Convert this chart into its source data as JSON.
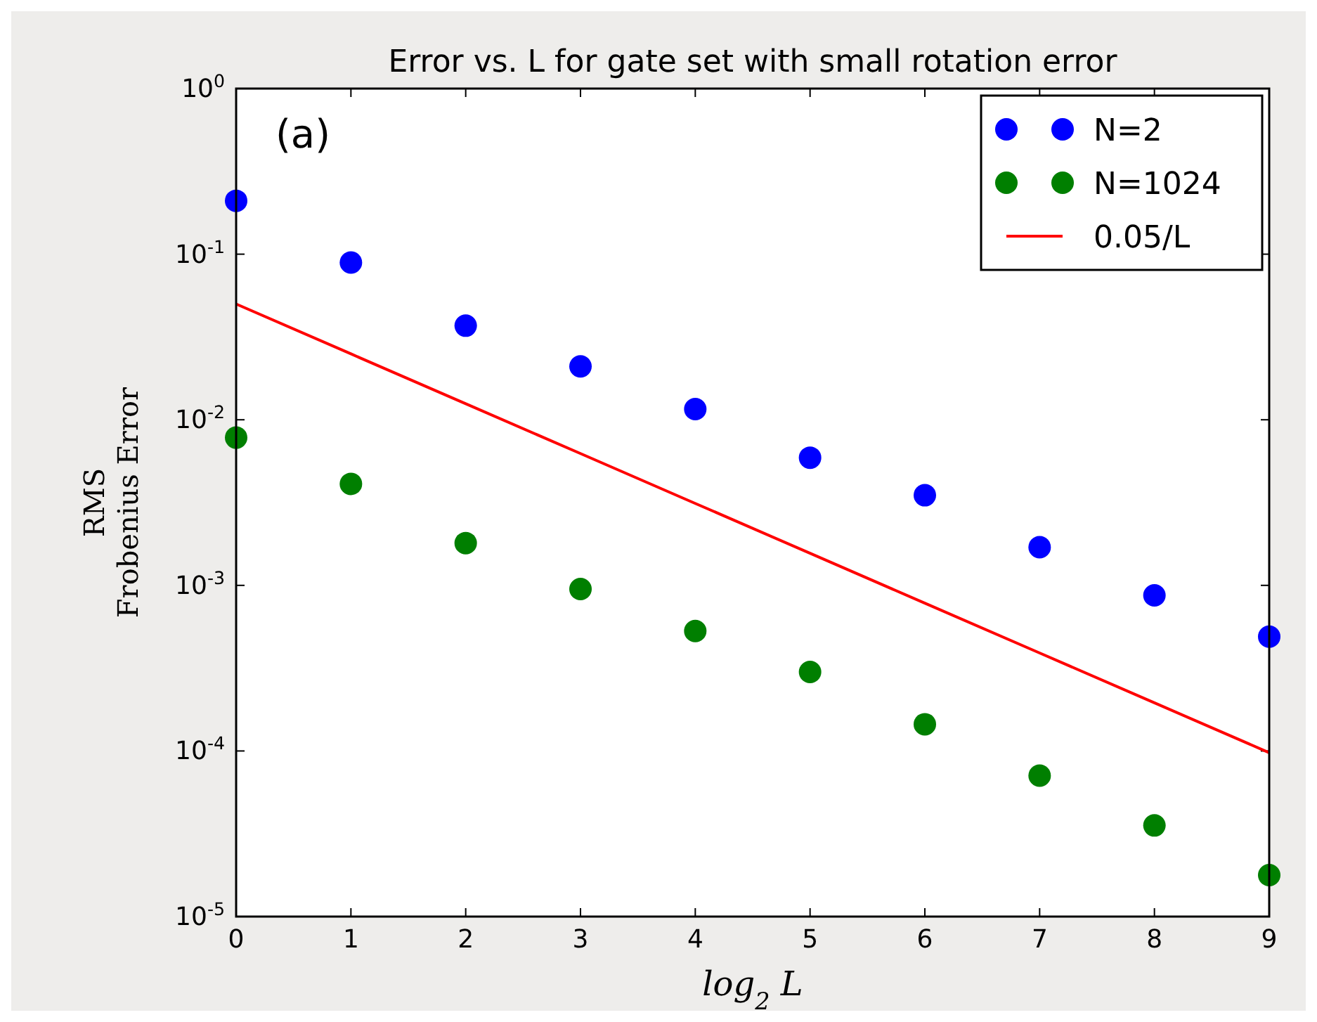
{
  "chart_data": {
    "type": "scatter",
    "title": "Error vs. L for gate set with small rotation error",
    "xlabel": "log$_{2}$ L",
    "ylabel": "RMS\nFrobenius Error",
    "x": [
      0,
      1,
      2,
      3,
      4,
      5,
      6,
      7,
      8,
      9
    ],
    "series": [
      {
        "name": "N=2",
        "color": "#0000ff",
        "values": [
          0.21,
          0.089,
          0.037,
          0.021,
          0.0116,
          0.0059,
          0.0035,
          0.0017,
          0.00087,
          0.00049
        ]
      },
      {
        "name": "N=1024",
        "color": "#007f00",
        "values": [
          0.0078,
          0.0041,
          0.0018,
          0.00095,
          0.00053,
          0.0003,
          0.000145,
          7.1e-05,
          3.55e-05,
          1.78e-05
        ]
      },
      {
        "name": "0.05/L",
        "type": "line",
        "marker": "none",
        "color": "#ff0000",
        "values": [
          0.05,
          0.025,
          0.0125,
          0.00625,
          0.003125,
          0.0015625,
          0.00078125,
          0.000390625,
          0.0001953125,
          9.765625e-05
        ]
      }
    ],
    "xlim": [
      0,
      9
    ],
    "xticks": [
      0,
      1,
      2,
      3,
      4,
      5,
      6,
      7,
      8,
      9
    ],
    "ylim": [
      1e-05,
      1
    ],
    "yticks": [
      {
        "value": 1e-05,
        "label": "10$^{-5}$"
      },
      {
        "value": 0.0001,
        "label": "10$^{-4}$"
      },
      {
        "value": 0.001,
        "label": "10$^{-3}$"
      },
      {
        "value": 0.01,
        "label": "10$^{-2}$"
      },
      {
        "value": 0.1,
        "label": "10$^{-1}$"
      },
      {
        "value": 1,
        "label": "10$^{0}$"
      }
    ],
    "log": "y",
    "grid": false,
    "legend": "top right",
    "marker": "circle",
    "annotations": [
      "(a)"
    ]
  }
}
